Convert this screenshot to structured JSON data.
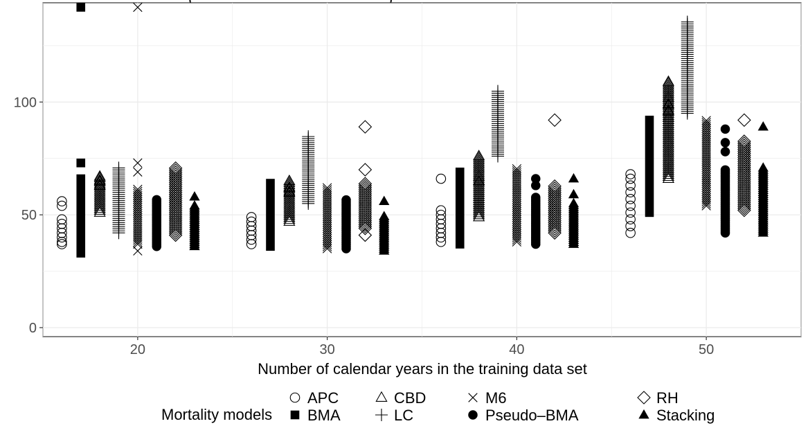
{
  "chart_data": {
    "type": "scatter",
    "title_partial": "(",
    "title_partial_2": ")",
    "xlabel": "Number of calendar years in the training data set",
    "ylabel": "",
    "xlim": [
      15,
      55
    ],
    "ylim": [
      -4,
      144
    ],
    "x_ticks": [
      20,
      30,
      40,
      50
    ],
    "y_ticks": [
      0,
      50,
      100
    ],
    "grid": true,
    "legend_position": "bottom",
    "legend_title": "Mortality models",
    "series": [
      {
        "name": "APC",
        "marker": "circle-open",
        "points": [
          {
            "x": 16,
            "y": 56
          },
          {
            "x": 16,
            "y": 54
          },
          {
            "x": 16,
            "y": 48
          },
          {
            "x": 16,
            "y": 46
          },
          {
            "x": 16,
            "y": 44
          },
          {
            "x": 16,
            "y": 42
          },
          {
            "x": 16,
            "y": 40
          },
          {
            "x": 16,
            "y": 38
          },
          {
            "x": 16,
            "y": 37
          },
          {
            "x": 26,
            "y": 49
          },
          {
            "x": 26,
            "y": 47
          },
          {
            "x": 26,
            "y": 45
          },
          {
            "x": 26,
            "y": 43
          },
          {
            "x": 26,
            "y": 41
          },
          {
            "x": 26,
            "y": 39
          },
          {
            "x": 26,
            "y": 37
          },
          {
            "x": 36,
            "y": 66
          },
          {
            "x": 36,
            "y": 52
          },
          {
            "x": 36,
            "y": 50
          },
          {
            "x": 36,
            "y": 48
          },
          {
            "x": 36,
            "y": 46
          },
          {
            "x": 36,
            "y": 44
          },
          {
            "x": 36,
            "y": 42
          },
          {
            "x": 36,
            "y": 40
          },
          {
            "x": 36,
            "y": 38
          },
          {
            "x": 46,
            "y": 68
          },
          {
            "x": 46,
            "y": 66
          },
          {
            "x": 46,
            "y": 63
          },
          {
            "x": 46,
            "y": 60
          },
          {
            "x": 46,
            "y": 57
          },
          {
            "x": 46,
            "y": 54
          },
          {
            "x": 46,
            "y": 51
          },
          {
            "x": 46,
            "y": 48
          },
          {
            "x": 46,
            "y": 45
          },
          {
            "x": 46,
            "y": 42
          }
        ]
      },
      {
        "name": "BMA",
        "marker": "square",
        "points": [
          {
            "x": 17,
            "y": 142
          },
          {
            "x": 17,
            "y": 73
          }
        ],
        "ranges": [
          {
            "x": 17,
            "low": 33,
            "high": 66
          },
          {
            "x": 27,
            "low": 36,
            "high": 64
          },
          {
            "x": 37,
            "low": 37,
            "high": 69
          },
          {
            "x": 47,
            "low": 51,
            "high": 92
          }
        ]
      },
      {
        "name": "CBD",
        "marker": "triangle-open",
        "ranges": [
          {
            "x": 18,
            "low": 51,
            "high": 67,
            "top": [
              67,
              65,
              63
            ]
          },
          {
            "x": 28,
            "low": 47,
            "high": 65,
            "top": [
              65,
              62,
              60
            ]
          },
          {
            "x": 38,
            "low": 49,
            "high": 76,
            "top": [
              76,
              67,
              65
            ]
          },
          {
            "x": 48,
            "low": 66,
            "high": 109,
            "top": [
              109,
              102,
              99,
              96,
              93
            ]
          }
        ]
      },
      {
        "name": "LC",
        "marker": "plus",
        "ranges": [
          {
            "x": 19,
            "low": 42,
            "high": 71
          },
          {
            "x": 29,
            "low": 55,
            "high": 85
          },
          {
            "x": 39,
            "low": 76,
            "high": 105
          },
          {
            "x": 49,
            "low": 95,
            "high": 136
          }
        ]
      },
      {
        "name": "M6",
        "marker": "cross",
        "points": [
          {
            "x": 20,
            "y": 142
          },
          {
            "x": 20,
            "y": 73
          },
          {
            "x": 20,
            "y": 69
          },
          {
            "x": 20,
            "y": 34
          }
        ],
        "ranges": [
          {
            "x": 20,
            "low": 37,
            "high": 62
          },
          {
            "x": 30,
            "low": 35,
            "high": 62
          },
          {
            "x": 40,
            "low": 38,
            "high": 71
          },
          {
            "x": 50,
            "low": 54,
            "high": 92
          }
        ]
      },
      {
        "name": "Pseudo-BMA",
        "marker": "circle-filled",
        "points": [
          {
            "x": 41,
            "y": 66
          },
          {
            "x": 41,
            "y": 63
          },
          {
            "x": 51,
            "y": 88
          },
          {
            "x": 51,
            "y": 82
          },
          {
            "x": 51,
            "y": 78
          }
        ],
        "ranges": [
          {
            "x": 21,
            "low": 36,
            "high": 57
          },
          {
            "x": 31,
            "low": 35,
            "high": 57
          },
          {
            "x": 41,
            "low": 37,
            "high": 58
          },
          {
            "x": 51,
            "low": 42,
            "high": 70
          }
        ]
      },
      {
        "name": "RH",
        "marker": "diamond-open",
        "points": [
          {
            "x": 32,
            "y": 89
          },
          {
            "x": 32,
            "y": 70
          },
          {
            "x": 32,
            "y": 41
          },
          {
            "x": 42,
            "y": 92
          },
          {
            "x": 52,
            "y": 92
          }
        ],
        "ranges": [
          {
            "x": 22,
            "low": 41,
            "high": 71
          },
          {
            "x": 32,
            "low": 44,
            "high": 64
          },
          {
            "x": 42,
            "low": 42,
            "high": 63
          },
          {
            "x": 52,
            "low": 52,
            "high": 83
          }
        ]
      },
      {
        "name": "Stacking",
        "marker": "triangle-filled",
        "points": [
          {
            "x": 23,
            "y": 58
          },
          {
            "x": 33,
            "y": 56
          },
          {
            "x": 43,
            "y": 66
          },
          {
            "x": 43,
            "y": 59
          },
          {
            "x": 53,
            "y": 89
          }
        ],
        "ranges": [
          {
            "x": 23,
            "low": 36,
            "high": 54
          },
          {
            "x": 33,
            "low": 34,
            "high": 50
          },
          {
            "x": 43,
            "low": 37,
            "high": 55
          },
          {
            "x": 53,
            "low": 42,
            "high": 71
          }
        ]
      }
    ]
  }
}
